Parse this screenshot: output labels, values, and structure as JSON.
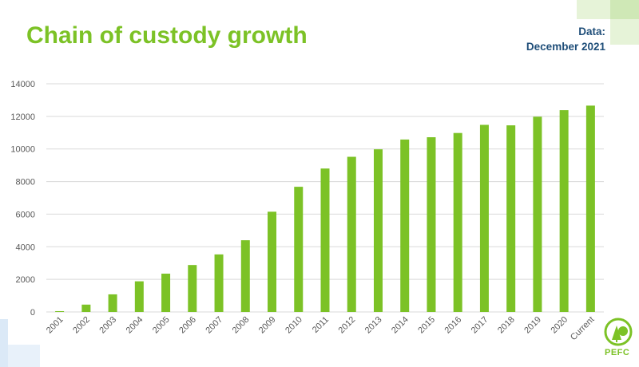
{
  "header": {
    "title": "Chain of custody growth",
    "data_label": "Data:",
    "data_date": "December 2021"
  },
  "logo": {
    "text": "PEFC"
  },
  "colors": {
    "bar": "#7cc226",
    "title": "#7cc226",
    "note": "#1f4e79",
    "grid": "#d9d9d9",
    "tick": "#595959"
  },
  "chart_data": {
    "type": "bar",
    "categories": [
      "2001",
      "2002",
      "2003",
      "2004",
      "2005",
      "2006",
      "2007",
      "2008",
      "2009",
      "2010",
      "2011",
      "2012",
      "2013",
      "2014",
      "2015",
      "2016",
      "2017",
      "2018",
      "2019",
      "2020",
      "Current"
    ],
    "values": [
      50,
      450,
      1080,
      1880,
      2350,
      2880,
      3530,
      4400,
      6150,
      7680,
      8800,
      9520,
      9980,
      10580,
      10720,
      10980,
      11480,
      11450,
      11980,
      12380,
      12660
    ],
    "ylim": [
      0,
      14000
    ],
    "yticks": [
      0,
      2000,
      4000,
      6000,
      8000,
      10000,
      12000,
      14000
    ],
    "grid": true,
    "legend": "none"
  }
}
